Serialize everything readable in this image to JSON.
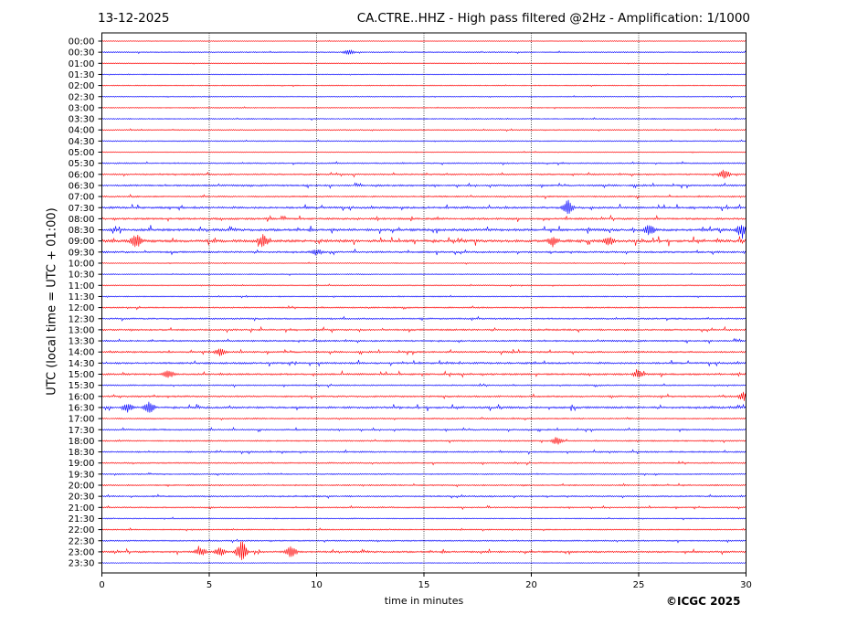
{
  "header": {
    "date": "13-12-2025",
    "title": "CA.CTRE..HHZ - High pass filtered @2Hz - Amplification: 1/1000"
  },
  "footer": {
    "copyright": "©ICGC 2025"
  },
  "chart_data": {
    "type": "line",
    "title": "CA.CTRE..HHZ - High pass filtered @2Hz - Amplification: 1/1000",
    "xlabel": "time in minutes",
    "ylabel": "UTC (local time = UTC + 01:00)",
    "xlim": [
      0,
      30
    ],
    "x_ticks": [
      0,
      5,
      10,
      15,
      20,
      25,
      30
    ],
    "vertical_gridlines": [
      5,
      10,
      15,
      20,
      25
    ],
    "grid": "dotted vertical",
    "colors": {
      "red": "#ff0000",
      "blue": "#0000ff"
    },
    "row_labels": [
      "00:00",
      "00:30",
      "01:00",
      "01:30",
      "02:00",
      "02:30",
      "03:00",
      "03:30",
      "04:00",
      "04:30",
      "05:00",
      "05:30",
      "06:00",
      "06:30",
      "07:00",
      "07:30",
      "08:00",
      "08:30",
      "09:00",
      "09:30",
      "10:00",
      "10:30",
      "11:00",
      "11:30",
      "12:00",
      "12:30",
      "13:00",
      "13:30",
      "14:00",
      "14:30",
      "15:00",
      "15:30",
      "16:00",
      "16:30",
      "17:00",
      "17:30",
      "18:00",
      "18:30",
      "19:00",
      "19:30",
      "20:00",
      "20:30",
      "21:00",
      "21:30",
      "22:00",
      "22:30",
      "23:00",
      "23:30"
    ],
    "row_colors": [
      "red",
      "blue",
      "red",
      "blue",
      "red",
      "blue",
      "red",
      "blue",
      "red",
      "blue",
      "red",
      "blue",
      "red",
      "blue",
      "red",
      "blue",
      "red",
      "blue",
      "red",
      "blue",
      "red",
      "blue",
      "red",
      "blue",
      "red",
      "blue",
      "red",
      "blue",
      "red",
      "blue",
      "red",
      "blue",
      "red",
      "blue",
      "red",
      "blue",
      "red",
      "blue",
      "red",
      "blue",
      "red",
      "blue",
      "red",
      "blue",
      "red",
      "blue",
      "red",
      "blue"
    ],
    "row_activity": [
      0.1,
      0.2,
      0.1,
      0.1,
      0.15,
      0.15,
      0.15,
      0.2,
      0.2,
      0.2,
      0.15,
      0.3,
      0.4,
      0.45,
      0.35,
      0.6,
      0.55,
      0.8,
      0.9,
      0.5,
      0.15,
      0.15,
      0.2,
      0.2,
      0.3,
      0.4,
      0.45,
      0.4,
      0.45,
      0.55,
      0.5,
      0.3,
      0.45,
      0.6,
      0.3,
      0.35,
      0.3,
      0.35,
      0.3,
      0.25,
      0.3,
      0.35,
      0.3,
      0.2,
      0.25,
      0.3,
      0.5,
      0.1
    ],
    "events": [
      {
        "row": "00:30",
        "minute": 11.5,
        "amplitude": 0.6
      },
      {
        "row": "06:00",
        "minute": 29.0,
        "amplitude": 1.2
      },
      {
        "row": "07:30",
        "minute": 21.7,
        "amplitude": 2.2
      },
      {
        "row": "08:30",
        "minute": 25.5,
        "amplitude": 1.5
      },
      {
        "row": "08:30",
        "minute": 29.8,
        "amplitude": 1.8
      },
      {
        "row": "09:00",
        "minute": 1.6,
        "amplitude": 2.0
      },
      {
        "row": "09:00",
        "minute": 7.5,
        "amplitude": 1.8
      },
      {
        "row": "09:00",
        "minute": 21.0,
        "amplitude": 1.3
      },
      {
        "row": "09:00",
        "minute": 23.6,
        "amplitude": 1.2
      },
      {
        "row": "09:30",
        "minute": 10.0,
        "amplitude": 0.8
      },
      {
        "row": "14:00",
        "minute": 5.5,
        "amplitude": 1.0
      },
      {
        "row": "15:00",
        "minute": 3.1,
        "amplitude": 1.2
      },
      {
        "row": "15:00",
        "minute": 25.0,
        "amplitude": 1.0
      },
      {
        "row": "16:00",
        "minute": 29.9,
        "amplitude": 1.3
      },
      {
        "row": "16:30",
        "minute": 2.2,
        "amplitude": 1.8
      },
      {
        "row": "16:30",
        "minute": 1.2,
        "amplitude": 1.3
      },
      {
        "row": "18:00",
        "minute": 21.2,
        "amplitude": 1.2
      },
      {
        "row": "23:00",
        "minute": 6.5,
        "amplitude": 3.5
      },
      {
        "row": "23:00",
        "minute": 8.8,
        "amplitude": 2.0
      },
      {
        "row": "23:00",
        "minute": 4.6,
        "amplitude": 1.2
      },
      {
        "row": "23:00",
        "minute": 5.5,
        "amplitude": 1.2
      }
    ]
  }
}
